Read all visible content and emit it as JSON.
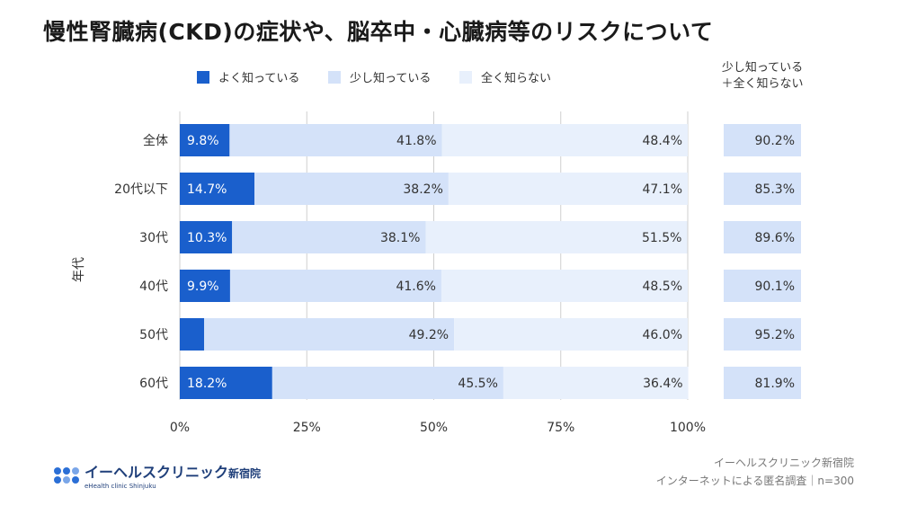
{
  "title": "慢性腎臓病(CKD)の症状や、脳卒中・心臓病等のリスクについて",
  "colors": {
    "know_well": "#1a5fcc",
    "know_little": "#d4e2f9",
    "dont_know": "#e8f0fc",
    "total_box": "#d4e2f9",
    "grid": "#cfcfcf",
    "text": "#333333"
  },
  "chart_data": {
    "type": "bar",
    "orientation": "horizontal",
    "stacked": true,
    "categories": [
      "全体",
      "20代以下",
      "30代",
      "40代",
      "50代",
      "60代"
    ],
    "series": [
      {
        "name": "よく知っている",
        "values": [
          9.8,
          14.7,
          10.3,
          9.9,
          4.8,
          18.2
        ]
      },
      {
        "name": "少し知っている",
        "values": [
          41.8,
          38.2,
          38.1,
          41.6,
          49.2,
          45.5
        ]
      },
      {
        "name": "全く知らない",
        "values": [
          48.4,
          47.1,
          51.5,
          48.5,
          46.0,
          36.4
        ]
      }
    ],
    "totals": {
      "label_lines": [
        "少し知っている",
        "＋全く知らない"
      ],
      "values": [
        90.2,
        85.3,
        89.6,
        90.1,
        95.2,
        81.9
      ]
    },
    "xlim": [
      0,
      100
    ],
    "xticks": [
      "0%",
      "25%",
      "50%",
      "75%",
      "100%"
    ],
    "ylabel": "年代",
    "legend_position": "top",
    "grid": true
  },
  "logo": {
    "text": "イーヘルスクリニック",
    "suffix": "新宿院",
    "sub": "eHealth clinic Shinjuku",
    "dot_colors": [
      "#2b6fd6",
      "#2b6fd6",
      "#7aa6e8",
      "#2b6fd6",
      "#7aa6e8",
      "#2b6fd6"
    ]
  },
  "source": {
    "line1": "イーヘルスクリニック新宿院",
    "line2": "インターネットによる匿名調査｜n=300"
  }
}
